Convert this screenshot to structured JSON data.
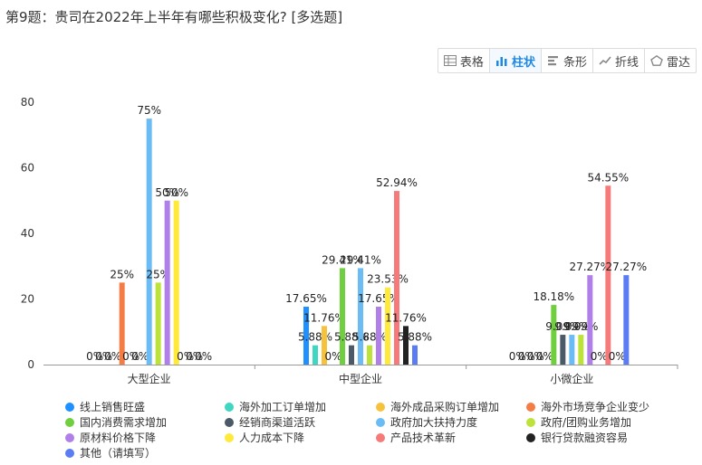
{
  "title": "第9题：贵司在2022年上半年有哪些积极变化? [多选题]",
  "toolbar": {
    "buttons": [
      {
        "label": "表格",
        "icon": "table-icon",
        "active": false
      },
      {
        "label": "柱状",
        "icon": "bar-chart-icon",
        "active": true
      },
      {
        "label": "条形",
        "icon": "horizontal-bar-icon",
        "active": false
      },
      {
        "label": "折线",
        "icon": "line-chart-icon",
        "active": false
      },
      {
        "label": "雷达",
        "icon": "radar-icon",
        "active": false
      }
    ]
  },
  "chart_data": {
    "type": "bar",
    "categories": [
      "大型企业",
      "中型企业",
      "小微企业"
    ],
    "ylim": [
      0,
      80
    ],
    "yticks": [
      0,
      20,
      40,
      60,
      80
    ],
    "grid": false,
    "legend_position": "bottom",
    "series": [
      {
        "name": "线上销售旺盛",
        "color": "#1e90ff",
        "values": [
          0,
          17.65,
          0
        ],
        "labels": [
          "0%",
          "17.65%",
          "0%"
        ]
      },
      {
        "name": "海外加工订单增加",
        "color": "#3fd6c2",
        "values": [
          0,
          5.88,
          0
        ],
        "labels": [
          "0%",
          "5.88%",
          "0%"
        ]
      },
      {
        "name": "海外成品采购订单增加",
        "color": "#f7c23b",
        "values": [
          0,
          11.76,
          0
        ],
        "labels": [
          "0%",
          "11.76%",
          "0%"
        ]
      },
      {
        "name": "海外市场竞争企业变少",
        "color": "#f47c45",
        "values": [
          25,
          0,
          0
        ],
        "labels": [
          "25%",
          "0%",
          "0%"
        ]
      },
      {
        "name": "国内消费需求增加",
        "color": "#6fcf3f",
        "values": [
          0,
          29.41,
          18.18
        ],
        "labels": [
          "0%",
          "29.41%",
          "18.18%"
        ]
      },
      {
        "name": "经销商渠道活跃",
        "color": "#4b5a68",
        "values": [
          0,
          5.88,
          9.09
        ],
        "labels": [
          "0%",
          "5.88%",
          "9.09%"
        ]
      },
      {
        "name": "政府加大扶持力度",
        "color": "#6bbcf4",
        "values": [
          75,
          29.41,
          9.09
        ],
        "labels": [
          "75%",
          "29.41%",
          "9.09%"
        ]
      },
      {
        "name": "政府/团购业务增加",
        "color": "#bde33a",
        "values": [
          25,
          5.88,
          9.09
        ],
        "labels": [
          "25%",
          "5.88%",
          "9.09%"
        ]
      },
      {
        "name": "原材料价格下降",
        "color": "#b07fe8",
        "values": [
          50,
          17.65,
          27.27
        ],
        "labels": [
          "50%",
          "17.65%",
          "27.27%"
        ]
      },
      {
        "name": "人力成本下降",
        "color": "#ffe93b",
        "values": [
          50,
          23.53,
          0
        ],
        "labels": [
          "50%",
          "23.53%",
          "0%"
        ]
      },
      {
        "name": "产品技术革新",
        "color": "#f77a7a",
        "values": [
          0,
          52.94,
          54.55
        ],
        "labels": [
          "0%",
          "52.94%",
          "54.55%"
        ]
      },
      {
        "name": "银行贷款融资容易",
        "color": "#222222",
        "values": [
          0,
          11.76,
          0
        ],
        "labels": [
          "0%",
          "11.76%",
          "0%"
        ]
      },
      {
        "name": "其他（请填写）",
        "color": "#5b7cf2",
        "values": [
          0,
          5.88,
          27.27
        ],
        "labels": [
          "0%",
          "5.88%",
          "27.27%"
        ]
      }
    ]
  }
}
